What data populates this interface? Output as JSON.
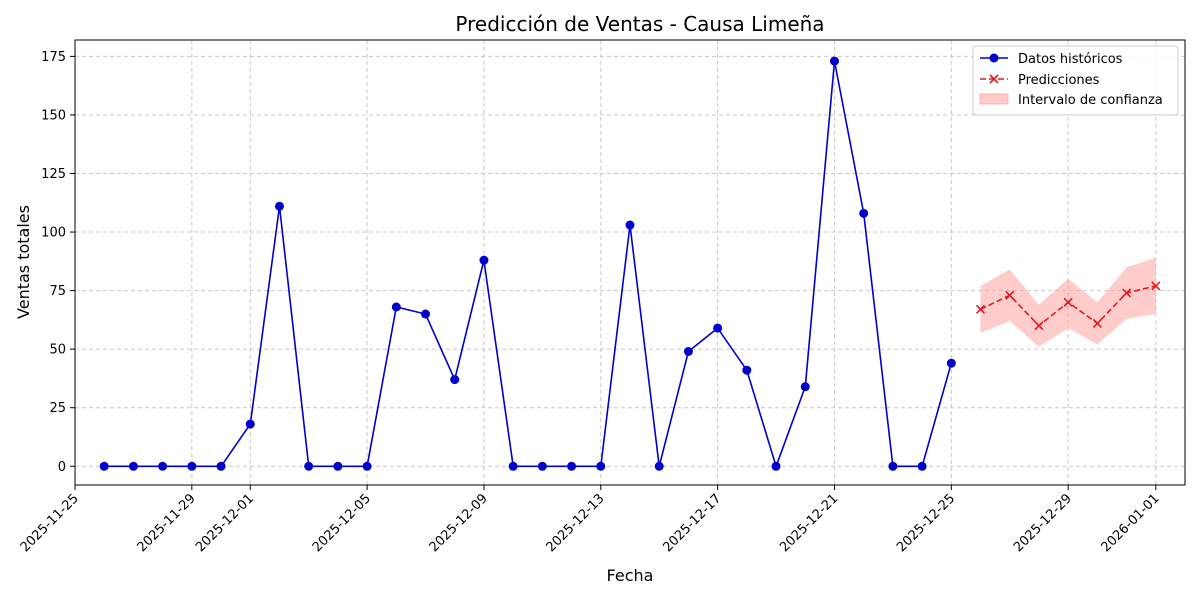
{
  "chart_data": {
    "type": "line",
    "title": "Predicción de Ventas - Causa Limeña",
    "xlabel": "Fecha",
    "ylabel": "Ventas totales",
    "xlim": [
      "2025-11-25",
      "2026-01-02"
    ],
    "ylim": [
      -8,
      182
    ],
    "x_ticks": [
      "2025-11-25",
      "2025-11-29",
      "2025-12-01",
      "2025-12-05",
      "2025-12-09",
      "2025-12-13",
      "2025-12-17",
      "2025-12-21",
      "2025-12-25",
      "2025-12-29",
      "2026-01-01"
    ],
    "y_ticks": [
      0,
      25,
      50,
      75,
      100,
      125,
      150,
      175
    ],
    "grid": true,
    "legend_position": "top-right",
    "series": [
      {
        "name": "Datos históricos",
        "color": "#0000cc",
        "marker": "circle",
        "line": "solid",
        "x": [
          "2025-11-26",
          "2025-11-27",
          "2025-11-28",
          "2025-11-29",
          "2025-11-30",
          "2025-12-01",
          "2025-12-02",
          "2025-12-03",
          "2025-12-04",
          "2025-12-05",
          "2025-12-06",
          "2025-12-07",
          "2025-12-08",
          "2025-12-09",
          "2025-12-10",
          "2025-12-11",
          "2025-12-12",
          "2025-12-13",
          "2025-12-14",
          "2025-12-15",
          "2025-12-16",
          "2025-12-17",
          "2025-12-18",
          "2025-12-19",
          "2025-12-20",
          "2025-12-21",
          "2025-12-22",
          "2025-12-23",
          "2025-12-24",
          "2025-12-25"
        ],
        "values": [
          0,
          0,
          0,
          0,
          0,
          18,
          111,
          0,
          0,
          0,
          68,
          65,
          37,
          88,
          0,
          0,
          0,
          0,
          103,
          0,
          49,
          59,
          41,
          0,
          34,
          173,
          108,
          0,
          0,
          44
        ]
      },
      {
        "name": "Predicciones",
        "color": "#e31a1a",
        "marker": "x",
        "line": "dashed",
        "x": [
          "2025-12-26",
          "2025-12-27",
          "2025-12-28",
          "2025-12-29",
          "2025-12-30",
          "2025-12-31",
          "2026-01-01"
        ],
        "values": [
          67,
          73,
          60,
          70,
          61,
          74,
          77
        ]
      }
    ],
    "interval": {
      "name": "Intervalo de confianza",
      "color": "#ff9999",
      "x": [
        "2025-12-26",
        "2025-12-27",
        "2025-12-28",
        "2025-12-29",
        "2025-12-30",
        "2025-12-31",
        "2026-01-01"
      ],
      "lower": [
        57,
        62,
        51,
        59,
        52,
        63,
        65
      ],
      "upper": [
        77,
        84,
        69,
        80,
        70,
        85,
        89
      ]
    }
  }
}
